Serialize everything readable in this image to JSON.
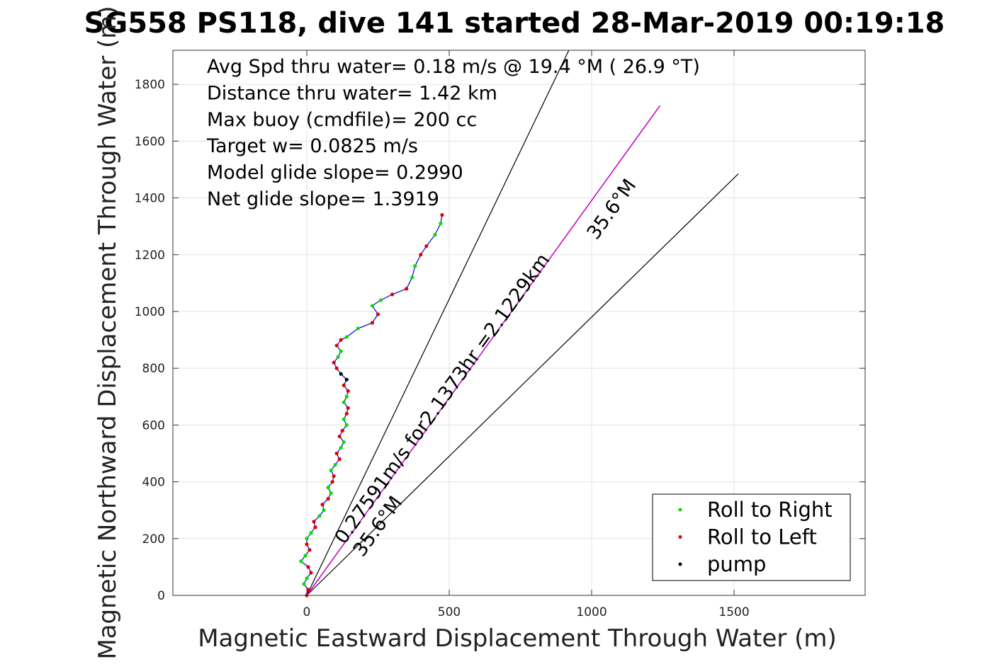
{
  "chart_data": {
    "type": "line",
    "title": "SG558 PS118, dive 141 started 28-Mar-2019 00:19:18",
    "xlabel": "Magnetic Eastward Displacement Through Water (m)",
    "ylabel": "Magnetic Northward Displacement Through Water (m)",
    "xlim": [
      -470,
      1960
    ],
    "ylim": [
      0,
      1920
    ],
    "xticks": [
      0,
      500,
      1000,
      1500
    ],
    "yticks": [
      0,
      200,
      400,
      600,
      800,
      1000,
      1200,
      1400,
      1600,
      1800
    ],
    "grid": true,
    "stats": [
      "Avg Spd thru water=  0.18 m/s @  19.4 °M ( 26.9 °T)",
      "Distance thru water=  1.42 km",
      "Max buoy (cmdfile)= 200 cc",
      "Target w= 0.0825 m/s",
      "Model glide slope= 0.2990",
      "Net glide slope= 1.3919"
    ],
    "annotations": {
      "vector_label": "0.27591m/s for2.1373hr =2.1229km",
      "heading_label_upper": "35.6°M",
      "heading_label_lower": "35.6°M"
    },
    "track": [
      [
        0,
        0
      ],
      [
        5,
        20
      ],
      [
        -10,
        40
      ],
      [
        0,
        60
      ],
      [
        15,
        80
      ],
      [
        5,
        100
      ],
      [
        -20,
        120
      ],
      [
        -5,
        140
      ],
      [
        10,
        160
      ],
      [
        0,
        180
      ],
      [
        0,
        200
      ],
      [
        15,
        220
      ],
      [
        30,
        240
      ],
      [
        25,
        260
      ],
      [
        45,
        280
      ],
      [
        60,
        300
      ],
      [
        55,
        320
      ],
      [
        75,
        340
      ],
      [
        85,
        360
      ],
      [
        75,
        380
      ],
      [
        90,
        400
      ],
      [
        95,
        420
      ],
      [
        85,
        440
      ],
      [
        100,
        460
      ],
      [
        115,
        480
      ],
      [
        105,
        500
      ],
      [
        120,
        520
      ],
      [
        130,
        540
      ],
      [
        115,
        560
      ],
      [
        125,
        580
      ],
      [
        140,
        600
      ],
      [
        130,
        620
      ],
      [
        140,
        640
      ],
      [
        145,
        660
      ],
      [
        130,
        680
      ],
      [
        140,
        700
      ],
      [
        145,
        720
      ],
      [
        130,
        740
      ],
      [
        140,
        760
      ],
      [
        120,
        780
      ],
      [
        105,
        800
      ],
      [
        95,
        820
      ],
      [
        110,
        840
      ],
      [
        120,
        860
      ],
      [
        105,
        880
      ],
      [
        120,
        900
      ],
      [
        140,
        910
      ],
      [
        180,
        940
      ],
      [
        230,
        960
      ],
      [
        250,
        990
      ],
      [
        230,
        1020
      ],
      [
        260,
        1040
      ],
      [
        300,
        1060
      ],
      [
        350,
        1080
      ],
      [
        370,
        1120
      ],
      [
        380,
        1160
      ],
      [
        400,
        1200
      ],
      [
        420,
        1230
      ],
      [
        450,
        1270
      ],
      [
        470,
        1310
      ],
      [
        475,
        1340
      ]
    ],
    "net_vector": {
      "from": [
        0,
        0
      ],
      "to": [
        1240,
        1725
      ]
    },
    "bounds": [
      {
        "from": [
          0,
          0
        ],
        "to": [
          920,
          1920
        ]
      },
      {
        "from": [
          0,
          0
        ],
        "to": [
          1515,
          1485
        ]
      }
    ],
    "series": [
      {
        "name": "Roll to Right",
        "color": "#00e000"
      },
      {
        "name": "Roll to Left",
        "color": "#e00000"
      },
      {
        "name": "pump",
        "color": "#000000"
      }
    ],
    "track_color": "#0000cc",
    "net_color": "#c000c0"
  }
}
